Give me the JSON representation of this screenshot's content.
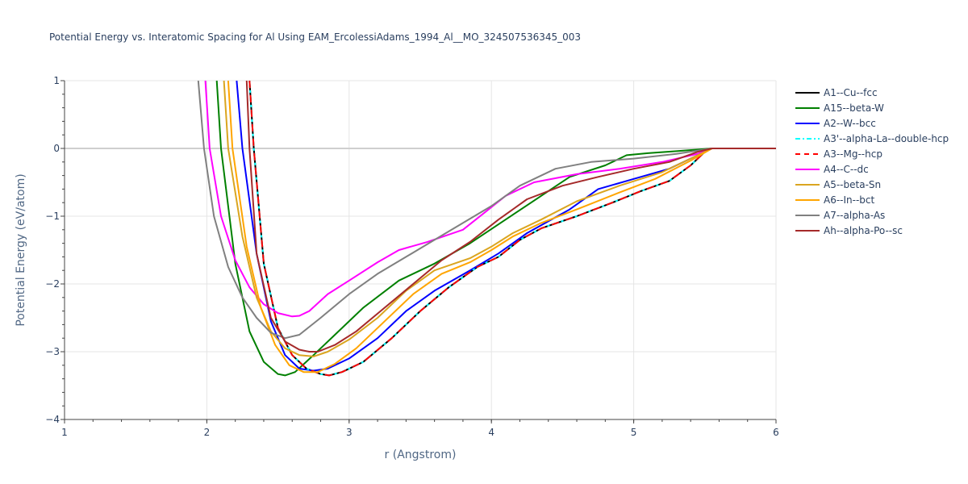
{
  "chart_data": {
    "type": "line",
    "title": "Potential Energy vs. Interatomic Spacing for Al Using EAM_ErcolessiAdams_1994_Al__MO_324507536345_003",
    "xlabel": "r (Angstrom)",
    "ylabel": "Potential Energy (eV/atom)",
    "xlim": [
      1,
      6
    ],
    "ylim": [
      -4,
      1
    ],
    "xticks": [
      1,
      2,
      3,
      4,
      5,
      6
    ],
    "xtick_labels": [
      "1",
      "2",
      "3",
      "4",
      "5",
      "6"
    ],
    "yticks": [
      1,
      0,
      -1,
      -2,
      -3,
      -4
    ],
    "ytick_labels": [
      "1",
      "0",
      "−1",
      "−2",
      "−3",
      "−4"
    ],
    "grid": true,
    "legend_position": "right",
    "series": [
      {
        "name": "A1--Cu--fcc",
        "color": "#000000",
        "dash": "solid",
        "x": [
          2.3,
          2.33,
          2.4,
          2.5,
          2.6,
          2.7,
          2.8,
          2.86,
          2.95,
          3.1,
          3.3,
          3.5,
          3.7,
          3.9,
          4.05,
          4.2,
          4.35,
          4.6,
          4.85,
          5.05,
          5.25,
          5.4,
          5.5,
          5.55,
          6.0
        ],
        "y": [
          1,
          0,
          -1.7,
          -2.65,
          -3.05,
          -3.25,
          -3.33,
          -3.35,
          -3.3,
          -3.15,
          -2.8,
          -2.4,
          -2.05,
          -1.75,
          -1.6,
          -1.35,
          -1.18,
          -1.0,
          -0.8,
          -0.63,
          -0.48,
          -0.25,
          -0.05,
          0,
          0
        ]
      },
      {
        "name": "A15--beta-W",
        "color": "#008000",
        "dash": "solid",
        "x": [
          2.07,
          2.1,
          2.2,
          2.3,
          2.4,
          2.5,
          2.55,
          2.62,
          2.75,
          2.9,
          3.1,
          3.35,
          3.6,
          3.85,
          4.1,
          4.35,
          4.55,
          4.8,
          4.95,
          5.1,
          5.3,
          5.5,
          5.55,
          6.0
        ],
        "y": [
          1,
          0,
          -1.7,
          -2.7,
          -3.15,
          -3.33,
          -3.35,
          -3.3,
          -3.05,
          -2.75,
          -2.35,
          -1.95,
          -1.7,
          -1.4,
          -1.05,
          -0.7,
          -0.42,
          -0.25,
          -0.1,
          -0.07,
          -0.04,
          -0.01,
          0,
          0
        ]
      },
      {
        "name": "A2--W--bcc",
        "color": "#0000ff",
        "dash": "solid",
        "x": [
          2.21,
          2.25,
          2.35,
          2.45,
          2.55,
          2.65,
          2.75,
          2.85,
          3.0,
          3.2,
          3.4,
          3.6,
          3.85,
          4.05,
          4.25,
          4.55,
          4.75,
          5.0,
          5.25,
          5.45,
          5.5,
          5.55,
          6.0
        ],
        "y": [
          1,
          0,
          -1.55,
          -2.55,
          -3.05,
          -3.25,
          -3.28,
          -3.25,
          -3.1,
          -2.8,
          -2.4,
          -2.1,
          -1.8,
          -1.55,
          -1.25,
          -0.9,
          -0.6,
          -0.45,
          -0.3,
          -0.1,
          -0.03,
          0,
          0
        ]
      },
      {
        "name": "A3'--alpha-La--double-hcp",
        "color": "#00ffff",
        "dash": "dashdot",
        "x": [
          2.3,
          2.33,
          2.4,
          2.5,
          2.6,
          2.7,
          2.8,
          2.86,
          2.95,
          3.1,
          3.3,
          3.5,
          3.7,
          3.9,
          4.05,
          4.2,
          4.35,
          4.6,
          4.85,
          5.05,
          5.25,
          5.4,
          5.5,
          5.55,
          6.0
        ],
        "y": [
          1,
          0,
          -1.7,
          -2.65,
          -3.05,
          -3.25,
          -3.33,
          -3.35,
          -3.3,
          -3.15,
          -2.8,
          -2.4,
          -2.05,
          -1.75,
          -1.6,
          -1.35,
          -1.18,
          -1.0,
          -0.8,
          -0.63,
          -0.48,
          -0.25,
          -0.05,
          0,
          0
        ]
      },
      {
        "name": "A3--Mg--hcp",
        "color": "#ff0000",
        "dash": "dash",
        "x": [
          2.3,
          2.33,
          2.4,
          2.5,
          2.6,
          2.7,
          2.8,
          2.86,
          2.95,
          3.1,
          3.3,
          3.5,
          3.7,
          3.9,
          4.05,
          4.2,
          4.35,
          4.6,
          4.85,
          5.05,
          5.25,
          5.4,
          5.5,
          5.55,
          6.0
        ],
        "y": [
          1,
          0,
          -1.7,
          -2.65,
          -3.05,
          -3.25,
          -3.33,
          -3.35,
          -3.3,
          -3.15,
          -2.8,
          -2.4,
          -2.05,
          -1.75,
          -1.6,
          -1.35,
          -1.18,
          -1.0,
          -0.8,
          -0.63,
          -0.48,
          -0.25,
          -0.05,
          0,
          0
        ]
      },
      {
        "name": "A4--C--dc",
        "color": "#ff00ff",
        "dash": "solid",
        "x": [
          1.99,
          2.02,
          2.1,
          2.2,
          2.3,
          2.4,
          2.5,
          2.6,
          2.65,
          2.72,
          2.85,
          3.0,
          3.2,
          3.35,
          3.55,
          3.8,
          3.95,
          4.1,
          4.3,
          4.6,
          4.9,
          5.2,
          5.45,
          5.55,
          6.0
        ],
        "y": [
          1,
          0,
          -1.0,
          -1.65,
          -2.05,
          -2.3,
          -2.43,
          -2.48,
          -2.47,
          -2.4,
          -2.15,
          -1.95,
          -1.68,
          -1.5,
          -1.38,
          -1.2,
          -0.95,
          -0.7,
          -0.5,
          -0.38,
          -0.3,
          -0.2,
          -0.08,
          0,
          0
        ]
      },
      {
        "name": "A5--beta-Sn",
        "color": "#daa520",
        "dash": "solid",
        "x": [
          2.12,
          2.15,
          2.25,
          2.35,
          2.45,
          2.55,
          2.65,
          2.75,
          2.85,
          3.0,
          3.2,
          3.4,
          3.6,
          3.85,
          4.0,
          4.15,
          4.35,
          4.6,
          4.9,
          5.2,
          5.45,
          5.55,
          6.0
        ],
        "y": [
          1,
          0,
          -1.3,
          -2.2,
          -2.7,
          -2.95,
          -3.05,
          -3.07,
          -3.0,
          -2.82,
          -2.5,
          -2.1,
          -1.8,
          -1.62,
          -1.45,
          -1.25,
          -1.05,
          -0.78,
          -0.55,
          -0.35,
          -0.1,
          0,
          0
        ]
      },
      {
        "name": "A6--In--bct",
        "color": "#ffa500",
        "dash": "solid",
        "x": [
          2.15,
          2.18,
          2.28,
          2.38,
          2.48,
          2.58,
          2.68,
          2.78,
          2.9,
          3.05,
          3.25,
          3.45,
          3.65,
          3.85,
          4.0,
          4.15,
          4.35,
          4.6,
          4.9,
          5.15,
          5.4,
          5.55,
          6.0
        ],
        "y": [
          1,
          0,
          -1.45,
          -2.35,
          -2.9,
          -3.2,
          -3.3,
          -3.3,
          -3.18,
          -2.95,
          -2.55,
          -2.15,
          -1.85,
          -1.68,
          -1.5,
          -1.3,
          -1.1,
          -0.9,
          -0.65,
          -0.45,
          -0.18,
          0,
          0
        ]
      },
      {
        "name": "A7--alpha-As",
        "color": "#808080",
        "dash": "solid",
        "x": [
          1.94,
          1.98,
          2.05,
          2.15,
          2.25,
          2.35,
          2.45,
          2.55,
          2.65,
          2.8,
          3.0,
          3.2,
          3.4,
          3.6,
          3.8,
          4.0,
          4.2,
          4.45,
          4.7,
          5.0,
          5.3,
          5.55,
          6.0
        ],
        "y": [
          1,
          0,
          -1.0,
          -1.75,
          -2.2,
          -2.5,
          -2.72,
          -2.8,
          -2.75,
          -2.5,
          -2.15,
          -1.85,
          -1.6,
          -1.35,
          -1.1,
          -0.85,
          -0.55,
          -0.3,
          -0.2,
          -0.15,
          -0.08,
          0,
          0
        ]
      },
      {
        "name": "Ah--alpha-Po--sc",
        "color": "#a52a2a",
        "dash": "solid",
        "x": [
          2.28,
          2.3,
          2.35,
          2.45,
          2.55,
          2.65,
          2.72,
          2.78,
          2.9,
          3.05,
          3.25,
          3.45,
          3.65,
          3.85,
          4.05,
          4.25,
          4.5,
          4.75,
          5.0,
          5.25,
          5.45,
          5.55,
          6.0
        ],
        "y": [
          1,
          0,
          -1.55,
          -2.5,
          -2.85,
          -2.97,
          -3.0,
          -3.0,
          -2.9,
          -2.7,
          -2.35,
          -2.0,
          -1.65,
          -1.38,
          -1.05,
          -0.75,
          -0.55,
          -0.42,
          -0.3,
          -0.2,
          -0.05,
          0,
          0
        ]
      }
    ]
  }
}
